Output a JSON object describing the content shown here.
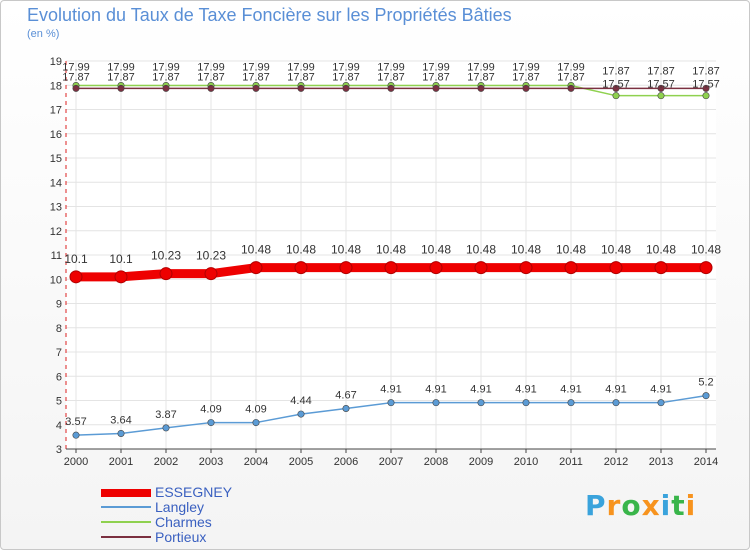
{
  "header": {
    "title": "Evolution du Taux de Taxe Foncière sur les Propriétés Bâties",
    "unit": "(en %)"
  },
  "chart_data": {
    "type": "line",
    "title": "Evolution du Taux de Taxe Foncière sur les Propriétés Bâties",
    "ylabel": "(en %)",
    "xlabel": "",
    "ylim": [
      3,
      19
    ],
    "yticks": [
      3,
      4,
      5,
      6,
      7,
      8,
      9,
      10,
      11,
      12,
      13,
      14,
      15,
      16,
      17,
      18,
      19
    ],
    "x": [
      "2000",
      "2001",
      "2002",
      "2003",
      "2004",
      "2005",
      "2006",
      "2007",
      "2008",
      "2009",
      "2010",
      "2011",
      "2012",
      "2013",
      "2014"
    ],
    "series": [
      {
        "name": "ESSEGNEY",
        "color": "#ee0000",
        "values": [
          10.1,
          10.1,
          10.23,
          10.23,
          10.48,
          10.48,
          10.48,
          10.48,
          10.48,
          10.48,
          10.48,
          10.48,
          10.48,
          10.48,
          10.48
        ],
        "labels": [
          "10.1",
          "10.1",
          "10.23",
          "10.23",
          "10.48",
          "10.48",
          "10.48",
          "10.48",
          "10.48",
          "10.48",
          "10.48",
          "10.48",
          "10.48",
          "10.48",
          "10.48"
        ]
      },
      {
        "name": "Langley",
        "color": "#5b9bd5",
        "values": [
          3.57,
          3.64,
          3.87,
          4.09,
          4.09,
          4.44,
          4.67,
          4.91,
          4.91,
          4.91,
          4.91,
          4.91,
          4.91,
          4.91,
          5.2
        ],
        "labels": [
          "3.57",
          "3.64",
          "3.87",
          "4.09",
          "4.09",
          "4.44",
          "4.67",
          "4.91",
          "4.91",
          "4.91",
          "4.91",
          "4.91",
          "4.91",
          "4.91",
          "5.2"
        ]
      },
      {
        "name": "Charmes",
        "color": "#8fd14f",
        "values": [
          17.99,
          17.99,
          17.99,
          17.99,
          17.99,
          17.99,
          17.99,
          17.99,
          17.99,
          17.99,
          17.99,
          17.99,
          17.57,
          17.57,
          17.57
        ],
        "labels": [
          "17.99",
          "17.99",
          "17.99",
          "17.99",
          "17.99",
          "17.99",
          "17.99",
          "17.99",
          "17.99",
          "17.99",
          "17.99",
          "17.99",
          "17.57",
          "17.57",
          "17.57"
        ]
      },
      {
        "name": "Portieux",
        "color": "#7b3040",
        "values": [
          17.87,
          17.87,
          17.87,
          17.87,
          17.87,
          17.87,
          17.87,
          17.87,
          17.87,
          17.87,
          17.87,
          17.87,
          17.87,
          17.87,
          17.87
        ],
        "labels": [
          "17.87",
          "17.87",
          "17.87",
          "17.87",
          "17.87",
          "17.87",
          "17.87",
          "17.87",
          "17.87",
          "17.87",
          "17.87",
          "17.87",
          "17.87",
          "17.87",
          "17.87"
        ]
      }
    ],
    "legend": [
      "ESSEGNEY",
      "Langley",
      "Charmes",
      "Portieux"
    ],
    "legend_position": "bottom-left"
  },
  "legend": {
    "items": [
      {
        "label": "ESSEGNEY",
        "color": "#ee0000"
      },
      {
        "label": "Langley",
        "color": "#5b9bd5"
      },
      {
        "label": "Charmes",
        "color": "#8fd14f"
      },
      {
        "label": "Portieux",
        "color": "#7b3040"
      }
    ]
  },
  "brand": {
    "letters": [
      "P",
      "r",
      "o",
      "x",
      "i",
      "t",
      "i"
    ],
    "colors": [
      "#3aa3dc",
      "#f7931e",
      "#39b54a",
      "#f7931e",
      "#3aa3dc",
      "#39b54a",
      "#f7931e"
    ]
  }
}
